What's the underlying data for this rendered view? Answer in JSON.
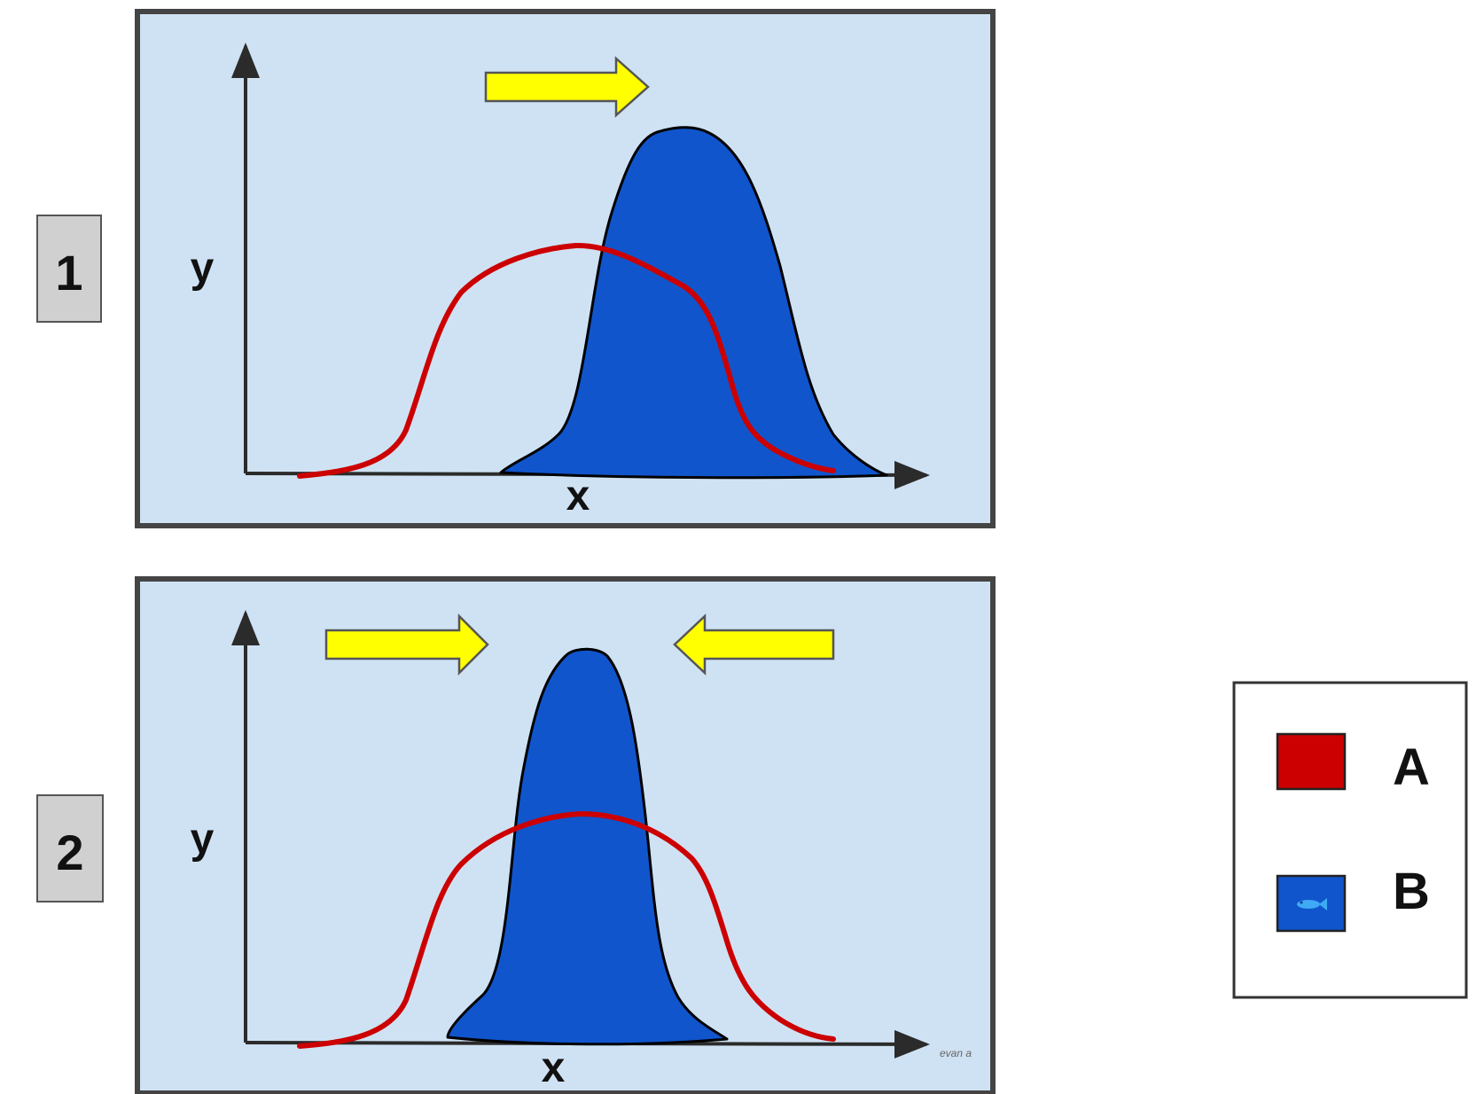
{
  "panels": [
    {
      "number": "1",
      "y_label": "y",
      "x_label": "x"
    },
    {
      "number": "2",
      "y_label": "y",
      "x_label": "x",
      "corner_text": "evan a"
    }
  ],
  "legend": {
    "items": [
      {
        "label": "A",
        "color": "#cc0000",
        "kind": "line"
      },
      {
        "label": "B",
        "color": "#1155cc",
        "kind": "filled-area",
        "swatch_icon": "fish-icon"
      }
    ]
  },
  "colors": {
    "panel_background": "#cfe2f3",
    "panel_border": "#444444",
    "arrow_fill": "#ffff00",
    "curve_a": "#cc0000",
    "curve_b": "#1155cc"
  },
  "icons": {
    "arrows": [
      "arrow-right-icon",
      "arrow-left-icon"
    ]
  }
}
